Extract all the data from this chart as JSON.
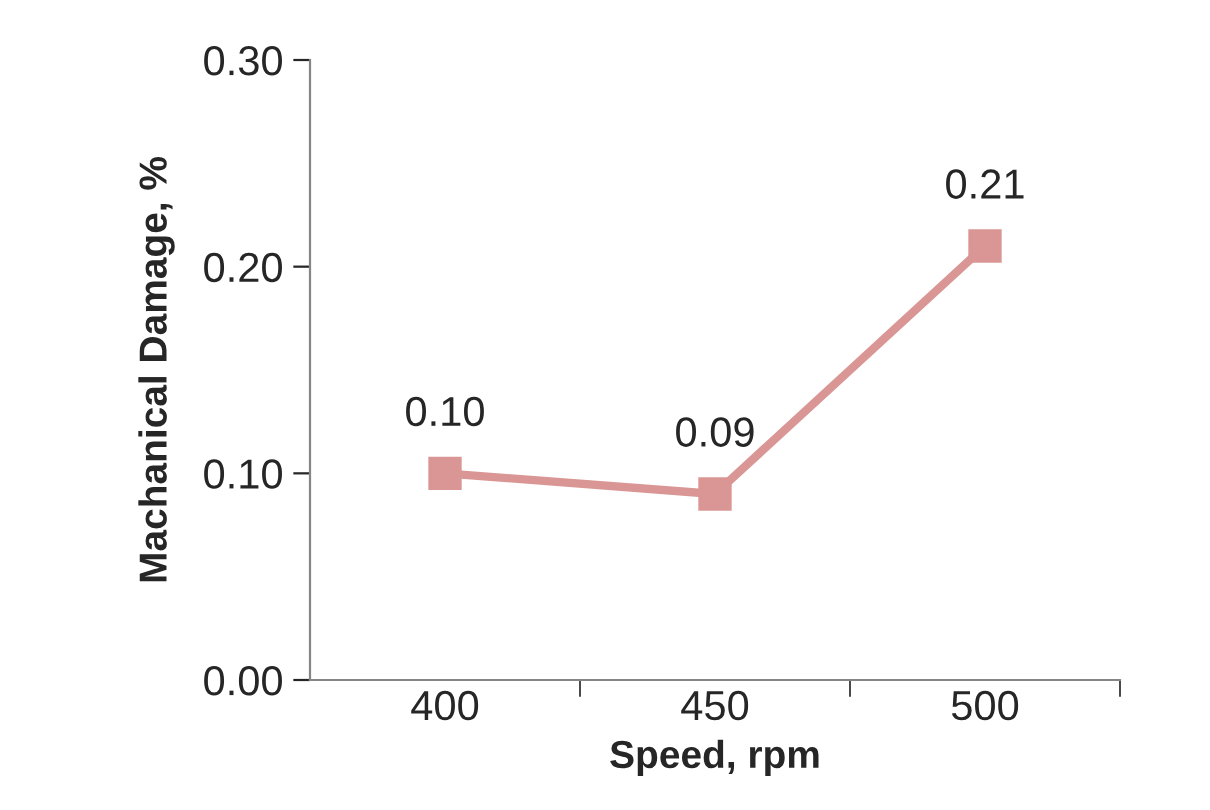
{
  "chart_data": {
    "type": "line",
    "xlabel": "Speed, rpm",
    "ylabel": "Machanical Damage, %",
    "categories": [
      "400",
      "450",
      "500"
    ],
    "series": [
      {
        "color": "#d99694",
        "values": [
          0.1,
          0.09,
          0.21
        ],
        "value_labels": [
          "0.10",
          "0.09",
          "0.21"
        ]
      }
    ],
    "ylim": [
      0,
      0.3
    ],
    "yticks": [
      {
        "value": 0,
        "label": "0.00"
      },
      {
        "value": 0.1,
        "label": "0.10"
      },
      {
        "value": 0.2,
        "label": "0.20"
      },
      {
        "value": 0.3,
        "label": "0.30"
      }
    ],
    "marker": "square",
    "line_style": "solid",
    "grid": false,
    "legend": false
  }
}
